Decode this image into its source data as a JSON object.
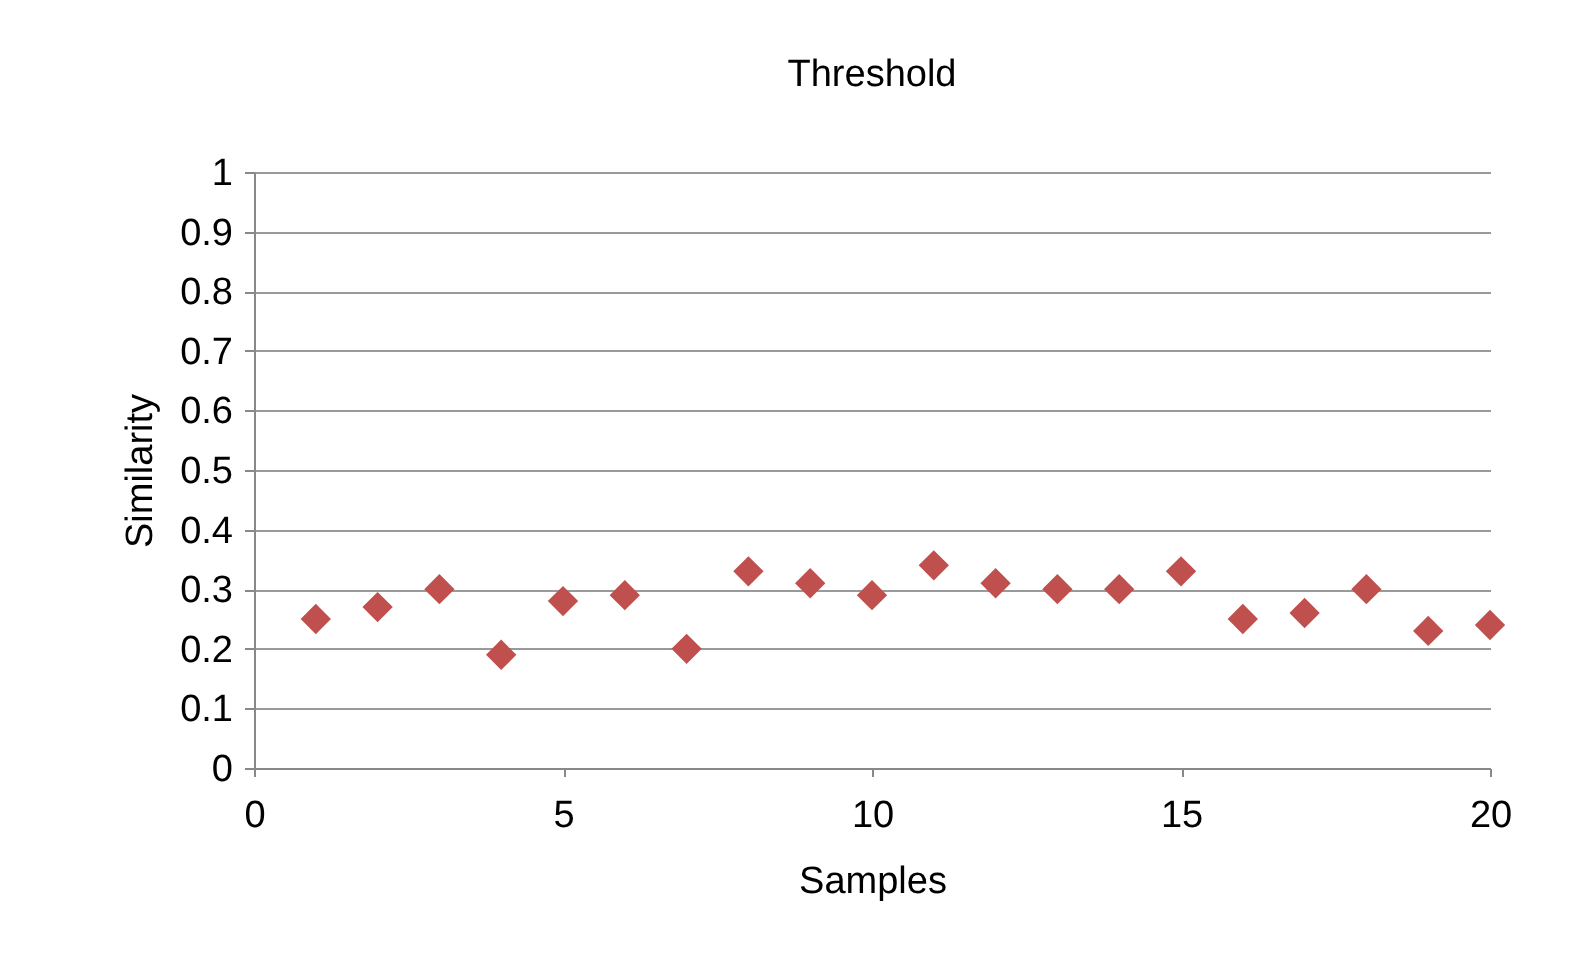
{
  "chart_data": {
    "type": "scatter",
    "title": "Threshold",
    "xlabel": "Samples",
    "ylabel": "Similarity",
    "x": [
      1,
      2,
      3,
      4,
      5,
      6,
      7,
      8,
      9,
      10,
      11,
      12,
      13,
      14,
      15,
      16,
      17,
      18,
      19,
      20
    ],
    "series": [
      {
        "color": "#c0504d",
        "values": [
          0.25,
          0.27,
          0.3,
          0.19,
          0.28,
          0.29,
          0.2,
          0.33,
          0.31,
          0.29,
          0.34,
          0.31,
          0.3,
          0.3,
          0.33,
          0.25,
          0.26,
          0.3,
          0.23,
          0.24
        ]
      }
    ],
    "xlim": [
      0,
      20
    ],
    "xticks": [
      0,
      5,
      10,
      15,
      20
    ],
    "ylim": [
      0,
      1
    ],
    "yticks": [
      0,
      0.1,
      0.2,
      0.3,
      0.4,
      0.5,
      0.6,
      0.7,
      0.8,
      0.9,
      1
    ],
    "grid": "y",
    "legend": false,
    "marker": "diamond"
  }
}
